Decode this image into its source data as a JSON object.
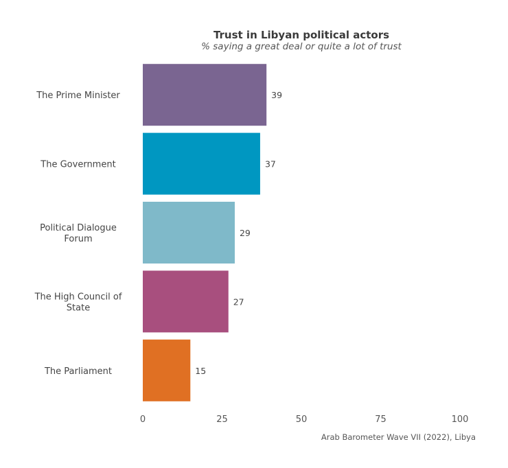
{
  "chart_data": {
    "type": "bar",
    "orientation": "horizontal",
    "title": "Trust in Libyan political actors",
    "subtitle": "% saying a great deal or quite a lot of trust",
    "caption": "Arab Barometer Wave VII (2022), Libya",
    "categories": [
      "The Prime Minister",
      "The Government",
      "Political Dialogue Forum",
      "The High Council of State",
      "The Parliament"
    ],
    "values": [
      39,
      37,
      29,
      27,
      15
    ],
    "colors": [
      "#7a6591",
      "#0097c1",
      "#7fb9c9",
      "#a84f7e",
      "#e07023"
    ],
    "xlim": [
      0,
      100
    ],
    "xticks": [
      0,
      25,
      50,
      75,
      100
    ],
    "xlabel": "",
    "ylabel": "",
    "grid": false,
    "legend": "none"
  }
}
